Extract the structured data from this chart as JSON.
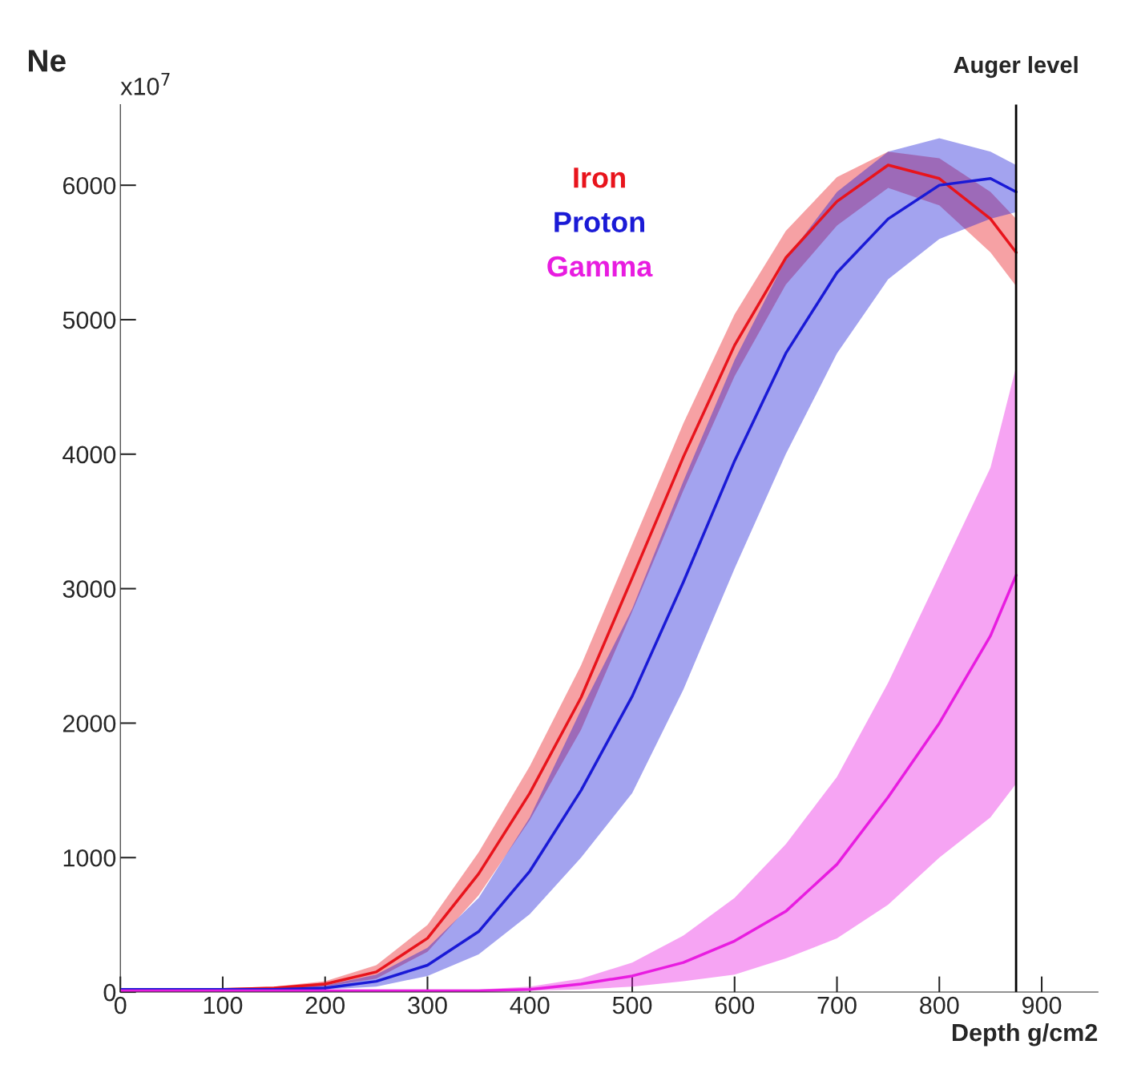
{
  "chart_data": {
    "type": "line",
    "xlabel": "Depth g/cm2",
    "ylabel": "Ne",
    "x": [
      0,
      50,
      100,
      150,
      200,
      250,
      300,
      350,
      400,
      450,
      500,
      550,
      600,
      650,
      700,
      750,
      800,
      850,
      875
    ],
    "series": [
      {
        "name": "Iron",
        "color": "#e8141c",
        "values": [
          20,
          20,
          20,
          30,
          60,
          150,
          400,
          880,
          1480,
          2190,
          3080,
          3980,
          4810,
          5460,
          5880,
          6150,
          6050,
          5750,
          5500
        ],
        "lower": [
          10,
          10,
          10,
          20,
          40,
          100,
          300,
          720,
          1280,
          1950,
          2830,
          3730,
          4580,
          5260,
          5700,
          5980,
          5850,
          5500,
          5250
        ],
        "upper": [
          30,
          30,
          30,
          40,
          80,
          200,
          500,
          1040,
          1680,
          2430,
          3330,
          4230,
          5040,
          5660,
          6060,
          6250,
          6200,
          5950,
          5750
        ]
      },
      {
        "name": "Proton",
        "color": "#1a1ad6",
        "values": [
          20,
          20,
          20,
          20,
          30,
          80,
          200,
          450,
          900,
          1500,
          2200,
          3050,
          3950,
          4750,
          5350,
          5750,
          6000,
          6050,
          5950
        ],
        "lower": [
          10,
          10,
          10,
          10,
          20,
          40,
          120,
          280,
          580,
          1000,
          1480,
          2250,
          3150,
          4000,
          4750,
          5300,
          5600,
          5750,
          5800
        ],
        "upper": [
          30,
          30,
          30,
          30,
          50,
          130,
          330,
          700,
          1300,
          2100,
          2850,
          3800,
          4700,
          5450,
          5950,
          6250,
          6350,
          6250,
          6150
        ]
      },
      {
        "name": "Gamma",
        "color": "#e81ce0",
        "values": [
          10,
          10,
          10,
          10,
          10,
          10,
          10,
          10,
          20,
          60,
          120,
          220,
          380,
          600,
          950,
          1450,
          2000,
          2650,
          3100
        ],
        "lower": [
          0,
          0,
          0,
          0,
          0,
          0,
          0,
          0,
          10,
          20,
          40,
          80,
          130,
          250,
          400,
          650,
          1000,
          1300,
          1550
        ],
        "upper": [
          20,
          20,
          20,
          20,
          20,
          20,
          20,
          20,
          40,
          100,
          220,
          420,
          700,
          1100,
          1600,
          2300,
          3100,
          3900,
          4650
        ]
      }
    ],
    "xlim": [
      0,
      955
    ],
    "ylim": [
      0,
      6600
    ],
    "xticks": [
      0,
      100,
      200,
      300,
      400,
      500,
      600,
      700,
      800,
      900
    ],
    "yticks": [
      0,
      1000,
      2000,
      3000,
      4000,
      5000,
      6000
    ],
    "ref_lines": [
      {
        "axis": "x",
        "value": 875,
        "label": "Auger level",
        "color": "#000000"
      }
    ],
    "annotations": [
      "x10$^{7}$"
    ],
    "legend": false,
    "grid": false
  }
}
